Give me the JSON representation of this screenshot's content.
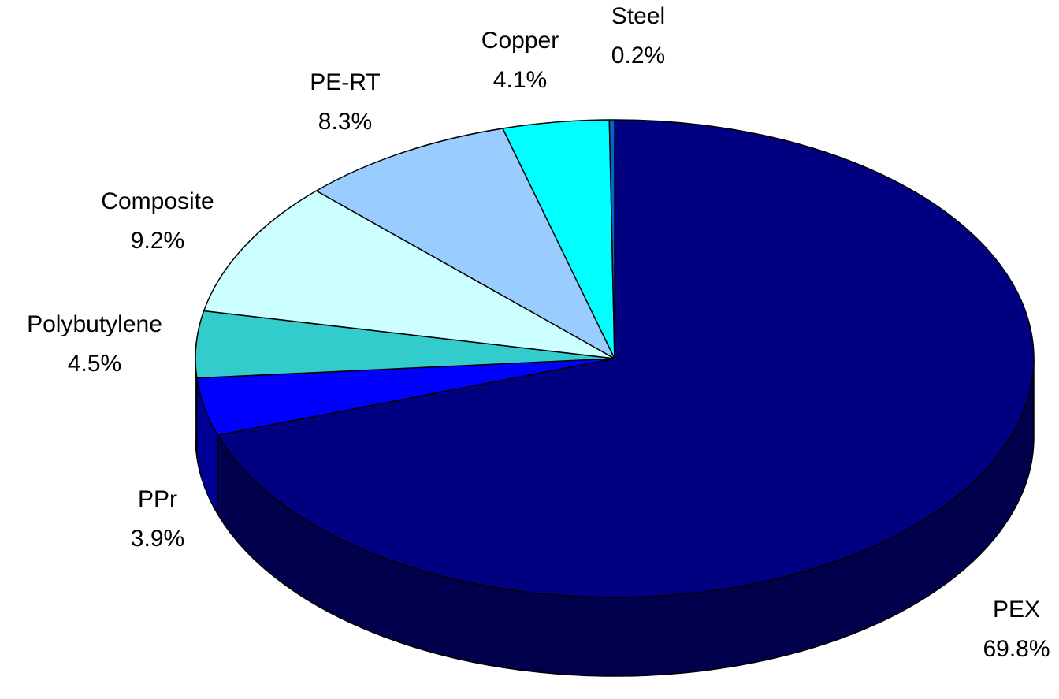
{
  "chart_data": {
    "type": "pie3d",
    "categories": [
      "PEX",
      "PPr",
      "Polybutylene",
      "Composite",
      "PE-RT",
      "Copper",
      "Steel"
    ],
    "values": [
      69.8,
      3.9,
      4.5,
      9.2,
      8.3,
      4.1,
      0.2
    ],
    "value_labels": [
      "69.8%",
      "3.9%",
      "4.5%",
      "9.2%",
      "8.3%",
      "4.1%",
      "0.2%"
    ],
    "colors": [
      "#000080",
      "#0000ff",
      "#33cccc",
      "#ccffff",
      "#99ccff",
      "#00ffff",
      "#0066cc"
    ]
  }
}
